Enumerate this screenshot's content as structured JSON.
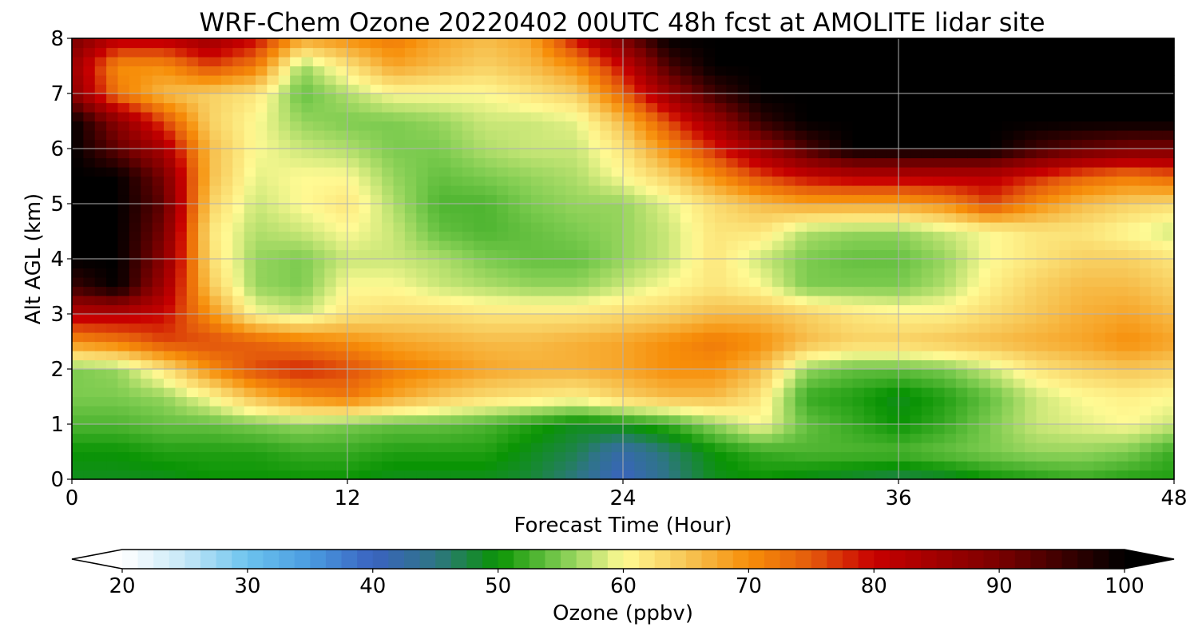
{
  "chart_data": {
    "type": "heatmap",
    "title": "WRF-Chem Ozone  20220402 00UTC 48h fcst at AMOLITE lidar site",
    "xlabel": "Forecast Time (Hour)",
    "ylabel": "Alt AGL (km)",
    "xlim": [
      0,
      48
    ],
    "ylim": [
      0,
      8
    ],
    "xticks": [
      "0",
      "12",
      "24",
      "36",
      "48"
    ],
    "yticks": [
      "0",
      "1",
      "2",
      "3",
      "4",
      "5",
      "6",
      "7",
      "8"
    ],
    "grid": true,
    "x": [
      0,
      2,
      4,
      6,
      8,
      10,
      12,
      14,
      16,
      18,
      20,
      22,
      24,
      26,
      28,
      30,
      32,
      34,
      36,
      38,
      40,
      42,
      44,
      46,
      48
    ],
    "y": [
      0,
      0.5,
      1,
      1.5,
      2,
      2.5,
      3,
      3.5,
      4,
      4.5,
      5,
      5.5,
      6,
      6.5,
      7,
      7.5,
      8
    ],
    "z": [
      [
        49,
        49,
        49,
        50,
        50,
        50,
        50,
        49,
        49,
        49,
        48,
        45,
        40,
        45,
        49,
        50,
        49,
        48,
        47,
        48,
        50,
        51,
        52,
        51,
        51
      ],
      [
        50,
        50,
        51,
        51,
        51,
        52,
        52,
        51,
        51,
        51,
        49,
        47,
        42,
        46,
        50,
        52,
        53,
        53,
        53,
        54,
        55,
        56,
        56,
        55,
        52
      ],
      [
        53,
        53,
        54,
        54,
        55,
        56,
        55,
        54,
        54,
        53,
        51,
        49,
        50,
        52,
        56,
        60,
        54,
        52,
        50,
        52,
        55,
        58,
        59,
        60,
        58
      ],
      [
        55,
        55,
        56,
        60,
        66,
        70,
        72,
        68,
        65,
        63,
        62,
        61,
        64,
        66,
        66,
        62,
        52,
        51,
        49,
        51,
        54,
        58,
        60,
        61,
        60
      ],
      [
        55,
        56,
        62,
        70,
        76,
        78,
        76,
        72,
        70,
        68,
        67,
        67,
        68,
        70,
        70,
        66,
        56,
        54,
        54,
        55,
        58,
        62,
        64,
        65,
        64
      ],
      [
        70,
        72,
        76,
        76,
        74,
        72,
        70,
        68,
        67,
        66,
        66,
        67,
        68,
        70,
        72,
        70,
        66,
        64,
        64,
        65,
        66,
        67,
        68,
        70,
        68
      ],
      [
        82,
        82,
        80,
        70,
        60,
        58,
        62,
        63,
        63,
        62,
        62,
        62,
        63,
        64,
        66,
        66,
        64,
        62,
        61,
        61,
        63,
        65,
        67,
        68,
        66
      ],
      [
        95,
        100,
        85,
        65,
        56,
        55,
        60,
        60,
        58,
        57,
        56,
        56,
        58,
        60,
        62,
        60,
        55,
        55,
        55,
        57,
        61,
        64,
        66,
        66,
        64
      ],
      [
        100,
        100,
        88,
        63,
        56,
        55,
        58,
        58,
        57,
        55,
        54,
        54,
        56,
        58,
        62,
        58,
        55,
        54,
        54,
        56,
        60,
        62,
        64,
        64,
        62
      ],
      [
        100,
        100,
        90,
        62,
        57,
        58,
        60,
        58,
        54,
        53,
        54,
        55,
        56,
        58,
        62,
        62,
        57,
        56,
        56,
        58,
        60,
        62,
        62,
        60,
        58
      ],
      [
        100,
        100,
        92,
        64,
        58,
        60,
        62,
        57,
        53,
        53,
        55,
        56,
        56,
        59,
        63,
        66,
        68,
        68,
        68,
        70,
        76,
        70,
        66,
        64,
        63
      ],
      [
        100,
        100,
        90,
        66,
        59,
        60,
        60,
        56,
        54,
        55,
        56,
        57,
        60,
        64,
        70,
        76,
        80,
        82,
        82,
        82,
        82,
        78,
        74,
        72,
        74
      ],
      [
        100,
        92,
        84,
        66,
        60,
        58,
        57,
        55,
        55,
        57,
        58,
        58,
        62,
        70,
        78,
        86,
        94,
        100,
        100,
        100,
        100,
        95,
        92,
        90,
        90
      ],
      [
        100,
        88,
        76,
        64,
        60,
        56,
        55,
        55,
        56,
        58,
        58,
        59,
        66,
        76,
        86,
        96,
        100,
        100,
        100,
        100,
        100,
        100,
        100,
        100,
        100
      ],
      [
        88,
        72,
        66,
        64,
        62,
        54,
        57,
        60,
        60,
        60,
        62,
        64,
        74,
        86,
        95,
        100,
        100,
        100,
        100,
        100,
        100,
        100,
        100,
        100,
        100
      ],
      [
        86,
        70,
        70,
        76,
        72,
        56,
        62,
        68,
        66,
        64,
        66,
        70,
        80,
        94,
        100,
        100,
        100,
        100,
        100,
        100,
        100,
        100,
        100,
        100,
        100
      ],
      [
        90,
        82,
        82,
        86,
        80,
        68,
        70,
        72,
        68,
        66,
        68,
        80,
        90,
        100,
        100,
        100,
        100,
        100,
        100,
        100,
        100,
        100,
        100,
        100,
        100
      ]
    ],
    "colorbar": {
      "label": "Ozone  (ppbv)",
      "ticks": [
        "20",
        "30",
        "40",
        "50",
        "60",
        "70",
        "80",
        "90",
        "100"
      ],
      "min": 20,
      "max": 100,
      "extend": "both"
    },
    "colormap": [
      [
        20,
        "#ffffff"
      ],
      [
        25,
        "#c6e8f7"
      ],
      [
        30,
        "#6cc3ee"
      ],
      [
        35,
        "#4a9be0"
      ],
      [
        40,
        "#3a63c0"
      ],
      [
        45,
        "#2e7585"
      ],
      [
        50,
        "#0a9404"
      ],
      [
        55,
        "#7ccb4f"
      ],
      [
        60,
        "#fffa94"
      ],
      [
        65,
        "#f7c656"
      ],
      [
        70,
        "#f78e09"
      ],
      [
        75,
        "#e45a0c"
      ],
      [
        80,
        "#c80000"
      ],
      [
        90,
        "#7a0000"
      ],
      [
        100,
        "#000000"
      ]
    ]
  }
}
